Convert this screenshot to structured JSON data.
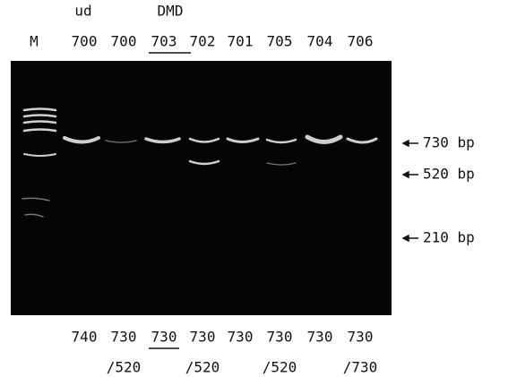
{
  "header": {
    "groups": [
      "ud",
      "DMD"
    ],
    "lanes": [
      "M",
      "700",
      "700",
      "703",
      "702",
      "701",
      "705",
      "704",
      "706"
    ]
  },
  "markers": [
    "730 bp",
    "520 bp",
    "210 bp"
  ],
  "footer": {
    "sizes": [
      "740",
      "730",
      "730",
      "730",
      "730",
      "730",
      "730",
      "730"
    ],
    "second": [
      "/520",
      "/520",
      "/520",
      "/730"
    ]
  }
}
